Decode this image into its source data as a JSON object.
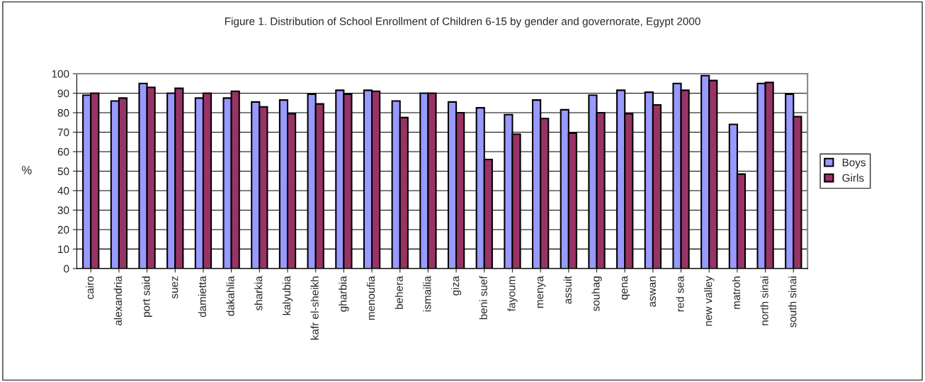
{
  "chart_data": {
    "type": "bar",
    "title": "Figure 1. Distribution of School Enrollment of Children 6-15 by gender and governorate, Egypt 2000",
    "ylabel": "%",
    "categories": [
      "cairo",
      "alexandria",
      "port said",
      "suez",
      "damietta",
      "dakahlia",
      "sharkia",
      "kalyubia",
      "kafr el-sheikh",
      "gharbia",
      "menoufia",
      "behera",
      "ismailia",
      "giza",
      "beni suef",
      "fayoum",
      "menya",
      "assuit",
      "souhag",
      "qena",
      "aswan",
      "red sea",
      "new valley",
      "matroh",
      "north sinai",
      "south sinai"
    ],
    "series": [
      {
        "name": "Boys",
        "color": "#9999ff",
        "values": [
          89,
          86,
          95,
          90,
          87.5,
          87.5,
          85.5,
          86.5,
          89.5,
          91.5,
          91.5,
          86,
          90,
          85.5,
          82.5,
          79,
          86.5,
          81.5,
          89,
          91.5,
          90.5,
          95,
          99,
          74,
          95,
          89.5
        ]
      },
      {
        "name": "Girls",
        "color": "#993366",
        "values": [
          90,
          87.5,
          93,
          92.5,
          90,
          91,
          83,
          79.5,
          84.5,
          89.5,
          91,
          77.5,
          90,
          80,
          56,
          69,
          77,
          69.5,
          80,
          79.5,
          84,
          91.5,
          96.5,
          48.5,
          95.5,
          78
        ]
      }
    ],
    "ylim": [
      0,
      100
    ],
    "yticks": [
      0,
      10,
      20,
      30,
      40,
      50,
      60,
      70,
      80,
      90,
      100
    ],
    "grid": "y",
    "legend": "right"
  }
}
